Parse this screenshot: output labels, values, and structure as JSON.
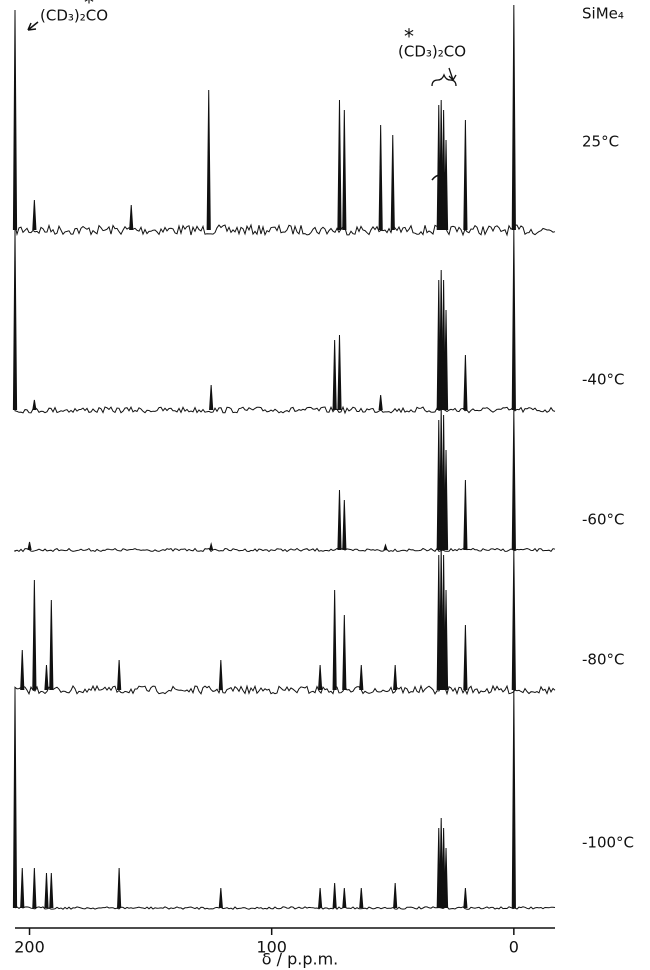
{
  "chart_data": {
    "type": "nmr-stack",
    "x_label": "δ / p.p.m.",
    "xlim": [
      206,
      -17
    ],
    "xticks": [
      200,
      100,
      0
    ],
    "annotations": [
      {
        "text": "(CD₃)₂CO",
        "mark": "*"
      },
      {
        "text": "(CD₃)₂CO",
        "mark": "*"
      },
      {
        "text": "SiMe₄"
      }
    ],
    "color": "#111111",
    "series": [
      {
        "name": "25°C",
        "peaks": [
          206,
          198,
          158,
          126,
          72,
          70,
          55,
          50,
          31,
          30,
          29,
          28,
          20,
          0
        ],
        "heights": [
          220,
          30,
          25,
          140,
          130,
          120,
          105,
          95,
          125,
          130,
          120,
          90,
          110,
          225
        ]
      },
      {
        "name": "-40°C",
        "peaks": [
          206,
          198,
          125,
          74,
          72,
          55,
          31,
          30,
          29,
          28,
          20,
          0
        ],
        "heights": [
          180,
          10,
          25,
          70,
          75,
          15,
          130,
          140,
          130,
          100,
          55,
          180
        ]
      },
      {
        "name": "-60°C",
        "peaks": [
          200,
          125,
          72,
          70,
          53,
          31,
          30,
          29,
          28,
          20,
          0
        ],
        "heights": [
          8,
          6,
          60,
          50,
          5,
          130,
          145,
          135,
          100,
          70,
          140
        ]
      },
      {
        "name": "-80°C",
        "peaks": [
          203,
          198,
          193,
          191,
          163,
          121,
          80,
          74,
          70,
          63,
          49,
          31,
          30,
          29,
          28,
          20,
          0
        ],
        "heights": [
          40,
          110,
          25,
          90,
          30,
          30,
          25,
          100,
          75,
          25,
          25,
          135,
          145,
          135,
          100,
          65,
          140
        ]
      },
      {
        "name": "-100°C",
        "peaks": [
          206,
          203,
          198,
          193,
          191,
          163,
          121,
          80,
          74,
          70,
          63,
          49,
          31,
          30,
          29,
          28,
          20,
          0
        ],
        "heights": [
          218,
          40,
          40,
          35,
          35,
          40,
          20,
          20,
          25,
          20,
          20,
          25,
          80,
          90,
          80,
          60,
          20,
          218
        ]
      }
    ]
  }
}
